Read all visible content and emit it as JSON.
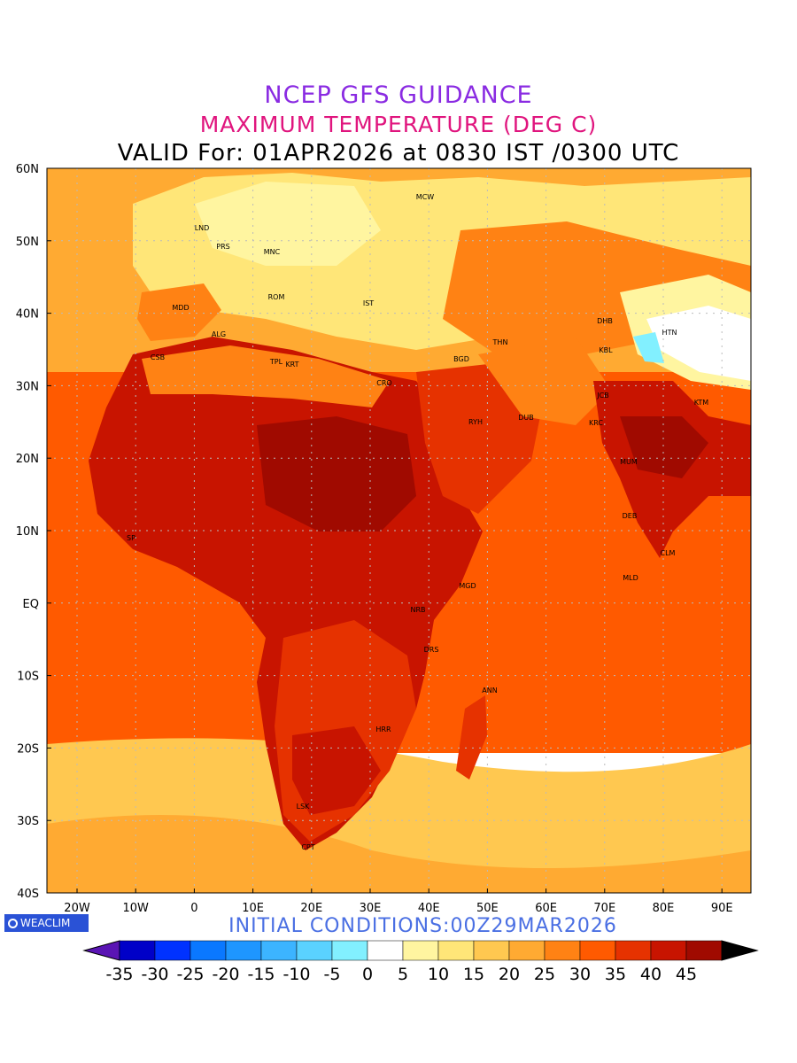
{
  "titles": {
    "line1": "NCEP GFS GUIDANCE",
    "line2": "MAXIMUM TEMPERATURE (DEG C)",
    "line3": "VALID For: 01APR2026 at 0830 IST /0300 UTC"
  },
  "axes": {
    "lat_labels": [
      "60N",
      "50N",
      "40N",
      "30N",
      "20N",
      "10N",
      "EQ",
      "10S",
      "20S",
      "30S",
      "40S"
    ],
    "lon_labels": [
      "20W",
      "10W",
      "0",
      "10E",
      "20E",
      "30E",
      "40E",
      "50E",
      "60E",
      "70E",
      "80E",
      "90E"
    ]
  },
  "cities": [
    {
      "code": "MCW"
    },
    {
      "code": "LND"
    },
    {
      "code": "PRS"
    },
    {
      "code": "MNC"
    },
    {
      "code": "MDD"
    },
    {
      "code": "ROM"
    },
    {
      "code": "IST"
    },
    {
      "code": "ALG"
    },
    {
      "code": "CSB"
    },
    {
      "code": "TPL"
    },
    {
      "code": "KRT"
    },
    {
      "code": "CRO"
    },
    {
      "code": "BGD"
    },
    {
      "code": "THN"
    },
    {
      "code": "DHB"
    },
    {
      "code": "HTN"
    },
    {
      "code": "KBL"
    },
    {
      "code": "RYH"
    },
    {
      "code": "DUB"
    },
    {
      "code": "JCB"
    },
    {
      "code": "KRC"
    },
    {
      "code": "MUM"
    },
    {
      "code": "DEB"
    },
    {
      "code": "CLM"
    },
    {
      "code": "MLD"
    },
    {
      "code": "MGD"
    },
    {
      "code": "NRB"
    },
    {
      "code": "DRS"
    },
    {
      "code": "ANN"
    },
    {
      "code": "HRR"
    },
    {
      "code": "LSK"
    },
    {
      "code": "CPT"
    },
    {
      "code": "SP"
    },
    {
      "code": "KTM"
    }
  ],
  "logo": {
    "text": "WEACLIM"
  },
  "initial_conditions": "INITIAL CONDITIONS:00Z29MAR2026",
  "colorbar": {
    "labels": [
      "-35",
      "-30",
      "-25",
      "-20",
      "-15",
      "-10",
      "-5",
      "0",
      "5",
      "10",
      "15",
      "20",
      "25",
      "30",
      "35",
      "40",
      "45"
    ],
    "colors": [
      "#0000c8",
      "#0032ff",
      "#0a78ff",
      "#1e96ff",
      "#3cb4ff",
      "#5ad2ff",
      "#82f0ff",
      "#ffffff",
      "#fff5a0",
      "#ffe678",
      "#ffc850",
      "#ffaa32",
      "#ff8214",
      "#ff5a00",
      "#e63200",
      "#c81400",
      "#a00a00"
    ],
    "low_color": "#5a14b4",
    "high_color": "#000000"
  },
  "legend_fills": {
    "ocean_north": "#ffaa32",
    "ocean_tropic": "#ff5a00",
    "ocean_south": "#ffc850",
    "ocean_far_south": "#ffaa32",
    "land_hot": "#c81400",
    "land_hottest": "#a00a00",
    "land_warm": "#e63200",
    "land_mild": "#ff8214",
    "land_cool": "#ffe678",
    "land_cold": "#fff5a0",
    "snow": "#ffffff",
    "ice_blue": "#82f0ff"
  }
}
